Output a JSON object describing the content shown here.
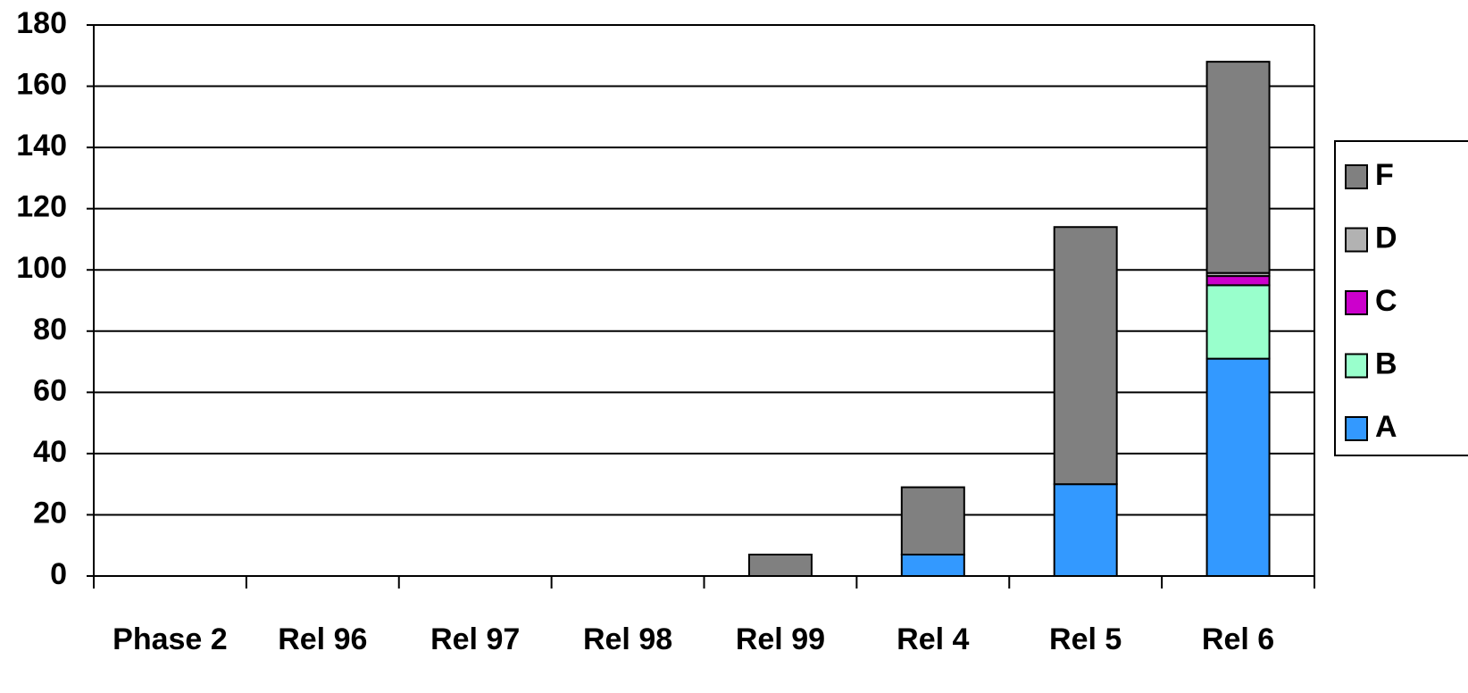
{
  "chart_data": {
    "type": "stacked_bar",
    "categories": [
      "Phase 2",
      "Rel 96",
      "Rel 97",
      "Rel 98",
      "Rel 99",
      "Rel 4",
      "Rel 5",
      "Rel 6"
    ],
    "series": [
      {
        "name": "A",
        "color": "#3399ff",
        "values": [
          0,
          0,
          0,
          0,
          0,
          7,
          30,
          71
        ]
      },
      {
        "name": "B",
        "color": "#99ffcc",
        "values": [
          0,
          0,
          0,
          0,
          0,
          0,
          0,
          24
        ]
      },
      {
        "name": "C",
        "color": "#cc00cc",
        "values": [
          0,
          0,
          0,
          0,
          0,
          0,
          0,
          3
        ]
      },
      {
        "name": "D",
        "color": "#b2b2b2",
        "values": [
          0,
          0,
          0,
          0,
          0,
          0,
          0,
          1
        ]
      },
      {
        "name": "F",
        "color": "#808080",
        "values": [
          0,
          0,
          0,
          0,
          7,
          22,
          84,
          69
        ]
      }
    ],
    "ylim": [
      0,
      180
    ],
    "yticks": [
      0,
      20,
      40,
      60,
      80,
      100,
      120,
      140,
      160,
      180
    ],
    "grid": true,
    "legend": "right"
  }
}
